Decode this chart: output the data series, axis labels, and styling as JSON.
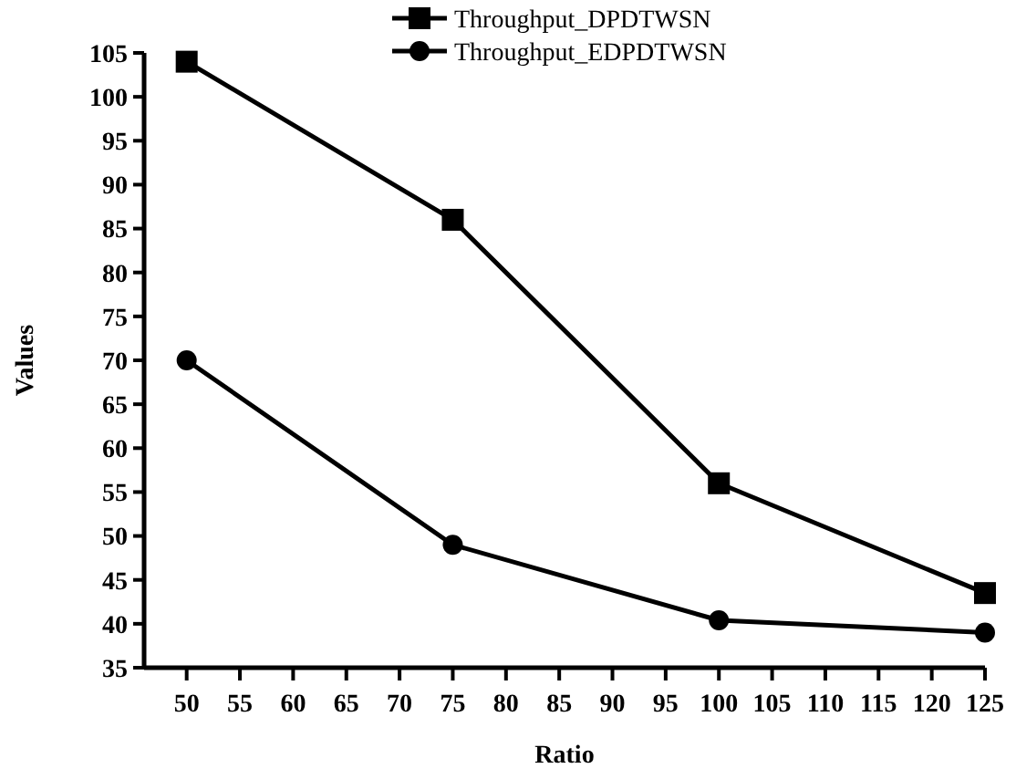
{
  "chart_data": {
    "type": "line",
    "xlabel": "Ratio",
    "ylabel": "Values",
    "x": [
      50,
      75,
      100,
      125
    ],
    "series": [
      {
        "name": "Throughput_DPDTWSN",
        "color": "#000000",
        "marker": "square",
        "values": [
          104,
          86,
          56,
          43.5
        ]
      },
      {
        "name": "Throughput_EDPDTWSN",
        "color": "#000000",
        "marker": "circle",
        "values": [
          70,
          49,
          40.4,
          39
        ]
      }
    ],
    "xlim": [
      46,
      125
    ],
    "xticks": [
      50,
      55,
      60,
      65,
      70,
      75,
      80,
      85,
      90,
      95,
      100,
      105,
      110,
      115,
      120,
      125
    ],
    "ylim": [
      35,
      105
    ],
    "yticks": [
      35,
      40,
      45,
      50,
      55,
      60,
      65,
      70,
      75,
      80,
      85,
      90,
      95,
      100,
      105
    ],
    "legend": "top",
    "grid": false,
    "line_style": "solid"
  }
}
